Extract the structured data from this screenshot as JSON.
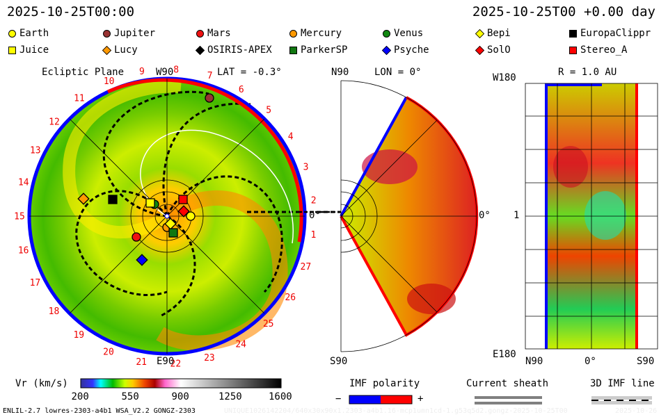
{
  "header": {
    "left_time": "2025-10-25T00:00",
    "right_time": "2025-10-25T00 +0.00 day"
  },
  "legend": [
    {
      "name": "Earth",
      "shape": "circle",
      "color": "#ffff00"
    },
    {
      "name": "Jupiter",
      "shape": "circle",
      "color": "#993333"
    },
    {
      "name": "Mars",
      "shape": "circle",
      "color": "#ee1111"
    },
    {
      "name": "Mercury",
      "shape": "circle",
      "color": "#ff9900"
    },
    {
      "name": "Venus",
      "shape": "circle",
      "color": "#118811"
    },
    {
      "name": "Bepi",
      "shape": "diamond",
      "color": "#ffff00"
    },
    {
      "name": "EuropaClippr",
      "shape": "square",
      "color": "#000000"
    },
    {
      "name": "Juice",
      "shape": "square",
      "color": "#ffff00"
    },
    {
      "name": "Lucy",
      "shape": "diamond",
      "color": "#ff9900"
    },
    {
      "name": "OSIRIS-APEX",
      "shape": "diamond",
      "color": "#000000"
    },
    {
      "name": "ParkerSP",
      "shape": "square",
      "color": "#117711"
    },
    {
      "name": "Psyche",
      "shape": "diamond",
      "color": "#0000ff"
    },
    {
      "name": "SolO",
      "shape": "diamond",
      "color": "#ff0000"
    },
    {
      "name": "Stereo_A",
      "shape": "square",
      "color": "#ff0000"
    }
  ],
  "ecliptic": {
    "title": "Ecliptic Plane",
    "top": "W90",
    "lat": "LAT = -0.3°",
    "bottom": "E90",
    "right": "0°",
    "day_labels": [
      "1",
      "2",
      "3",
      "4",
      "5",
      "6",
      "7",
      "8",
      "9",
      "10",
      "11",
      "12",
      "13",
      "14",
      "15",
      "16",
      "17",
      "18",
      "19",
      "20",
      "21",
      "22",
      "23",
      "24",
      "25",
      "26",
      "27"
    ]
  },
  "meridional": {
    "top": "N90",
    "lon": "LON = 0°",
    "bottom": "S90",
    "right": "0°"
  },
  "radial": {
    "r": "R = 1.0 AU",
    "top": "W180",
    "mid": "1",
    "bottom": "E180",
    "x_left": "N90",
    "x_mid": "0°",
    "x_right": "S90"
  },
  "colorbar": {
    "label": "Vr (km/s)",
    "ticks": [
      "200",
      "550",
      "900",
      "1250",
      "1600"
    ]
  },
  "imf": {
    "title": "IMF polarity",
    "minus": "−",
    "plus": "+",
    "neg_color": "#0000ff",
    "pos_color": "#ff0000"
  },
  "sheath": {
    "title": "Current sheath"
  },
  "imfline": {
    "title": "3D IMF line"
  },
  "footer": {
    "model": "ENLIL-2.7 lowres-2303-a4b1 WSA_V2.2 GONGZ-2303",
    "run_id": "UNIQUE1026142204/640x30x90x1.2303-a4b1.16-mcp1umn1cd-1.g53q5d2.gongz-2025-10-25T00",
    "run_date": "2025-10-26"
  }
}
